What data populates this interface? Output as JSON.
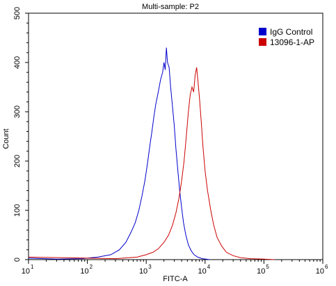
{
  "chart_data": {
    "type": "line",
    "title": "Multi-sample: P2",
    "xlabel": "FITC-A",
    "ylabel": "Count",
    "x_scale": "log",
    "xlim": [
      10,
      1000000
    ],
    "ylim": [
      0,
      500
    ],
    "x_ticks": [
      {
        "value": 10,
        "base": "10",
        "exp": "1"
      },
      {
        "value": 100,
        "base": "10",
        "exp": "2"
      },
      {
        "value": 1000,
        "base": "10",
        "exp": "3"
      },
      {
        "value": 10000,
        "base": "10",
        "exp": "4"
      },
      {
        "value": 100000,
        "base": "10",
        "exp": "5"
      },
      {
        "value": 1000000,
        "base": "10",
        "exp": "6"
      }
    ],
    "y_ticks": [
      "0",
      "100",
      "200",
      "300",
      "400",
      "500"
    ],
    "legend_position": "top-right",
    "grid": false,
    "series": [
      {
        "name": "IgG Control",
        "color": "#0000cc",
        "points": [
          [
            10,
            3
          ],
          [
            30,
            1
          ],
          [
            80,
            2
          ],
          [
            150,
            5
          ],
          [
            250,
            10
          ],
          [
            350,
            20
          ],
          [
            450,
            35
          ],
          [
            550,
            55
          ],
          [
            650,
            75
          ],
          [
            750,
            100
          ],
          [
            850,
            130
          ],
          [
            950,
            160
          ],
          [
            1050,
            195
          ],
          [
            1150,
            230
          ],
          [
            1250,
            260
          ],
          [
            1350,
            290
          ],
          [
            1450,
            315
          ],
          [
            1600,
            340
          ],
          [
            1750,
            365
          ],
          [
            1900,
            380
          ],
          [
            2000,
            400
          ],
          [
            2100,
            385
          ],
          [
            2200,
            430
          ],
          [
            2300,
            400
          ],
          [
            2450,
            390
          ],
          [
            2600,
            350
          ],
          [
            2800,
            310
          ],
          [
            3000,
            270
          ],
          [
            3200,
            225
          ],
          [
            3450,
            180
          ],
          [
            3700,
            140
          ],
          [
            4000,
            105
          ],
          [
            4300,
            75
          ],
          [
            4700,
            50
          ],
          [
            5200,
            30
          ],
          [
            5800,
            18
          ],
          [
            6500,
            10
          ],
          [
            7500,
            5
          ],
          [
            9000,
            2
          ],
          [
            12000,
            0
          ]
        ]
      },
      {
        "name": "13096-1-AP",
        "color": "#cc0000",
        "points": [
          [
            10,
            5
          ],
          [
            300,
            2
          ],
          [
            700,
            5
          ],
          [
            1000,
            10
          ],
          [
            1300,
            15
          ],
          [
            1600,
            22
          ],
          [
            2000,
            35
          ],
          [
            2400,
            50
          ],
          [
            2800,
            70
          ],
          [
            3200,
            95
          ],
          [
            3600,
            125
          ],
          [
            4000,
            160
          ],
          [
            4400,
            200
          ],
          [
            4800,
            250
          ],
          [
            5200,
            300
          ],
          [
            5600,
            335
          ],
          [
            6000,
            350
          ],
          [
            6400,
            340
          ],
          [
            6800,
            375
          ],
          [
            7200,
            390
          ],
          [
            7600,
            360
          ],
          [
            8000,
            330
          ],
          [
            8600,
            280
          ],
          [
            9200,
            230
          ],
          [
            10000,
            180
          ],
          [
            11000,
            140
          ],
          [
            12500,
            100
          ],
          [
            14000,
            70
          ],
          [
            16000,
            45
          ],
          [
            19000,
            28
          ],
          [
            23000,
            15
          ],
          [
            30000,
            8
          ],
          [
            40000,
            4
          ],
          [
            60000,
            2
          ],
          [
            100000,
            1
          ],
          [
            150000,
            0
          ]
        ]
      }
    ]
  }
}
